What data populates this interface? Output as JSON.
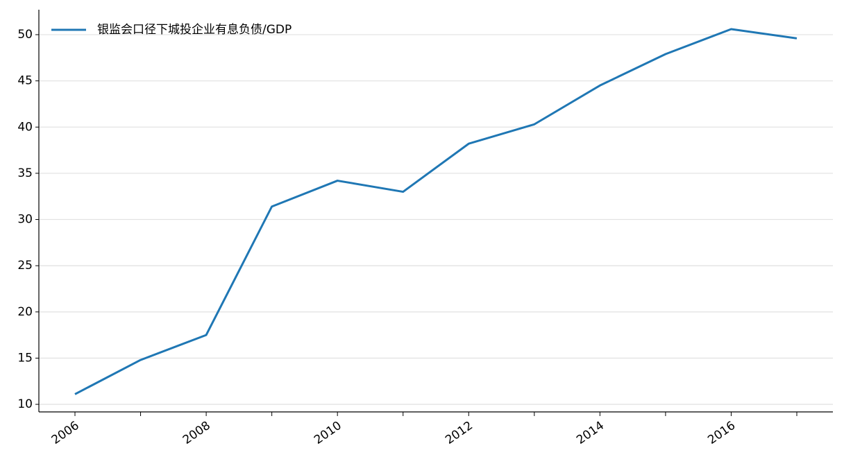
{
  "chart_data": {
    "type": "line",
    "x": [
      2006,
      2007,
      2008,
      2009,
      2010,
      2011,
      2012,
      2013,
      2014,
      2015,
      2016,
      2017
    ],
    "series": [
      {
        "name": "银监会口径下城投企业有息负债/GDP",
        "color": "#1f77b4",
        "values": [
          11.1,
          14.8,
          17.5,
          31.4,
          34.2,
          33.0,
          38.2,
          40.3,
          44.5,
          47.9,
          50.6,
          49.6
        ]
      }
    ],
    "xlim": [
      2005.45,
      2017.55
    ],
    "xticks": [
      2006,
      2008,
      2010,
      2012,
      2014,
      2016
    ],
    "xminor_ticks": [
      2007,
      2009,
      2011,
      2013,
      2015,
      2017
    ],
    "ylim": [
      9.18,
      52.7
    ],
    "yticks": [
      10,
      15,
      20,
      25,
      30,
      35,
      40,
      45,
      50
    ],
    "grid": "y",
    "legend": "upper left"
  }
}
